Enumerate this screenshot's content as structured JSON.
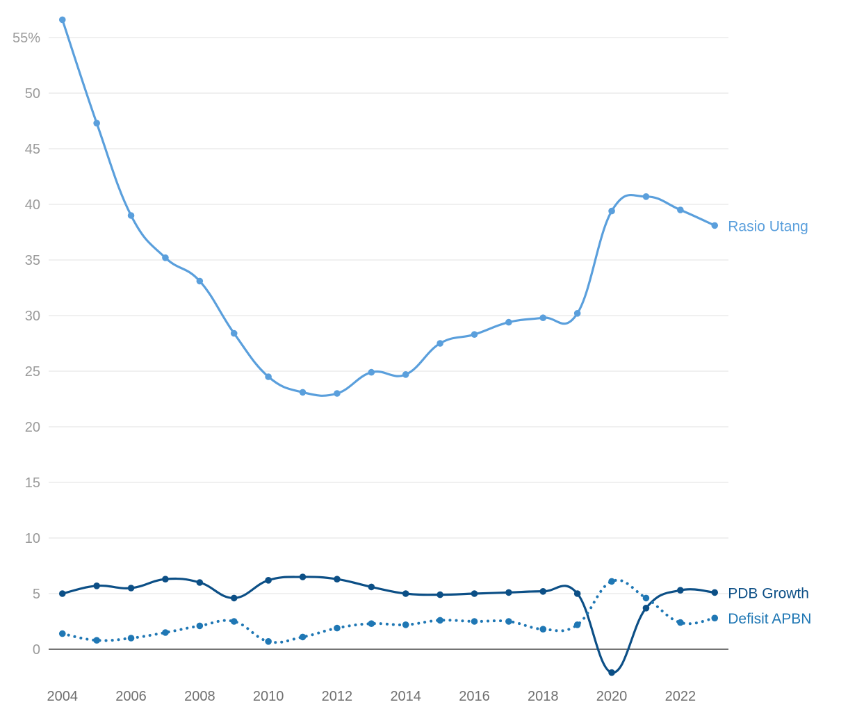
{
  "chart_data": {
    "type": "line",
    "x": [
      2004,
      2005,
      2006,
      2007,
      2008,
      2009,
      2010,
      2011,
      2012,
      2013,
      2014,
      2015,
      2016,
      2017,
      2018,
      2019,
      2020,
      2021,
      2022,
      2023
    ],
    "x_ticks": [
      "2004",
      "2006",
      "2008",
      "2010",
      "2012",
      "2014",
      "2016",
      "2018",
      "2020",
      "2022"
    ],
    "y_ticks": [
      "0",
      "5",
      "10",
      "15",
      "20",
      "25",
      "30",
      "35",
      "40",
      "45",
      "50",
      "55%"
    ],
    "ylim": [
      -2.5,
      57
    ],
    "xlim": [
      2003.6,
      2023.4
    ],
    "grid": true,
    "legend": "labels at line ends (right)",
    "series": [
      {
        "name": "Rasio Utang",
        "color": "#5a9fdc",
        "style": "solid",
        "values": [
          56.6,
          47.3,
          39.0,
          35.2,
          33.1,
          28.4,
          24.5,
          23.1,
          23.0,
          24.9,
          24.7,
          27.5,
          28.3,
          29.4,
          29.8,
          30.2,
          39.4,
          40.7,
          39.5,
          38.1
        ]
      },
      {
        "name": "PDB Growth",
        "color": "#0c4f86",
        "style": "solid",
        "values": [
          5.0,
          5.7,
          5.5,
          6.3,
          6.0,
          4.6,
          6.2,
          6.5,
          6.3,
          5.6,
          5.0,
          4.9,
          5.0,
          5.1,
          5.2,
          5.0,
          -2.1,
          3.7,
          5.3,
          5.1
        ]
      },
      {
        "name": "Defisit APBN",
        "color": "#1f77b4",
        "style": "dotted",
        "values": [
          1.4,
          0.8,
          1.0,
          1.5,
          2.1,
          2.5,
          0.7,
          1.1,
          1.9,
          2.3,
          2.2,
          2.6,
          2.5,
          2.5,
          1.8,
          2.2,
          6.1,
          4.6,
          2.4,
          2.8
        ]
      }
    ]
  }
}
